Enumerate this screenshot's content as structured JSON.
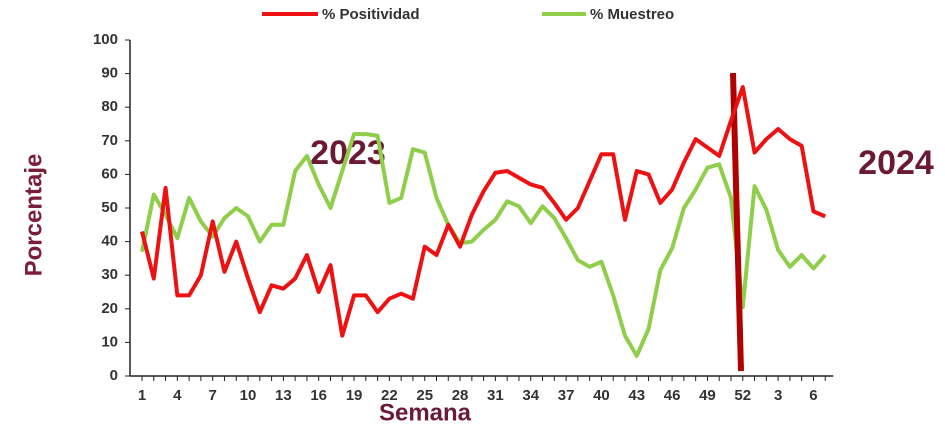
{
  "chart_data": {
    "type": "line",
    "legend": "top",
    "x_label": "Semana",
    "y_label": "Porcentaje",
    "annotations": [
      "2023",
      "2024"
    ],
    "categories": [
      "1",
      null,
      null,
      "4",
      null,
      null,
      "7",
      null,
      null,
      "10",
      null,
      null,
      "13",
      null,
      null,
      "16",
      null,
      null,
      "19",
      null,
      null,
      "22",
      null,
      null,
      "25",
      null,
      null,
      "28",
      null,
      null,
      "31",
      null,
      null,
      "34",
      null,
      null,
      "37",
      null,
      null,
      "40",
      null,
      null,
      "43",
      null,
      null,
      "46",
      null,
      null,
      "49",
      null,
      null,
      "52",
      null,
      null,
      "3",
      null,
      null,
      "6",
      null
    ],
    "series": [
      {
        "name": "% Positividad",
        "color": "#ee1111",
        "values": [
          43,
          29,
          56,
          24,
          24,
          30,
          46,
          31,
          40,
          29,
          19,
          27,
          26,
          29,
          36,
          25,
          33,
          12,
          24,
          24,
          19,
          23,
          24.5,
          23,
          38.5,
          36,
          45,
          38.5,
          48,
          55,
          60.5,
          61,
          59,
          57,
          56,
          51.5,
          46.5,
          50,
          58,
          66,
          66,
          46.5,
          61,
          60,
          51.5,
          55.5,
          63.5,
          70.5,
          68,
          65.5,
          76,
          86,
          66.5,
          70.5,
          73.5,
          70.5,
          68.5,
          49,
          47.5
        ]
      },
      {
        "name": "% Muestreo",
        "color": "#8fce4a",
        "values": [
          37,
          54,
          48,
          41,
          53,
          46,
          41.5,
          47,
          50,
          47.5,
          40,
          45,
          45,
          61,
          65.5,
          57,
          50,
          61,
          72,
          72,
          71.5,
          51.5,
          53,
          67.5,
          66.5,
          53,
          45,
          39.5,
          40,
          43.5,
          46.5,
          52,
          50.5,
          45.5,
          50.5,
          47,
          41,
          34.5,
          32.5,
          34,
          24,
          12,
          6,
          14,
          31.5,
          38,
          50,
          55.5,
          62,
          63,
          53,
          20.5,
          56.5,
          49.5,
          37.5,
          32.5,
          36,
          32,
          36
        ]
      }
    ],
    "ylim": [
      0,
      100
    ],
    "yticks": [
      0,
      10,
      20,
      30,
      40,
      50,
      60,
      70,
      80,
      90,
      100
    ],
    "grid": false
  }
}
